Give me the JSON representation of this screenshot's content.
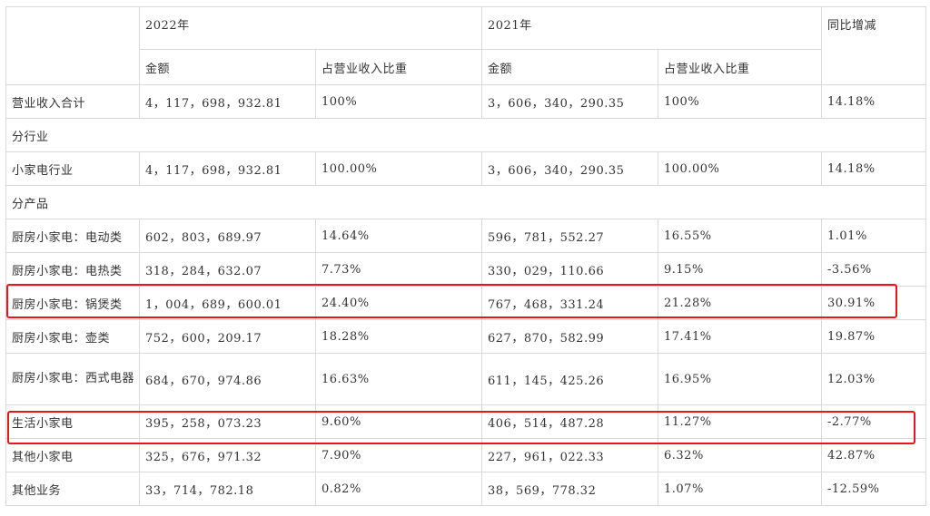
{
  "header": {
    "year_2022": "2022年",
    "year_2021": "2021年",
    "yoy": "同比增减",
    "amount_2022": "金额",
    "share_2022": "占营业收入比重",
    "amount_2021": "金额",
    "share_2021": "占营业收入比重"
  },
  "rows": [
    {
      "label": "营业收入合计",
      "a2022": "4，117，698，932.81",
      "s2022": "100%",
      "a2021": "3，606，340，290.35",
      "s2021": "100%",
      "yoy": "14.18%"
    },
    {
      "label": "分行业"
    },
    {
      "label": "小家电行业",
      "a2022": "4，117，698，932.81",
      "s2022": "100.00%",
      "a2021": "3，606，340，290.35",
      "s2021": "100.00%",
      "yoy": "14.18%"
    },
    {
      "label": "分产品"
    },
    {
      "label": "厨房小家电：电动类",
      "a2022": "602，803，689.97",
      "s2022": "14.64%",
      "a2021": "596，781，552.27",
      "s2021": "16.55%",
      "yoy": "1.01%"
    },
    {
      "label": "厨房小家电：电热类",
      "a2022": "318，284，632.07",
      "s2022": "7.73%",
      "a2021": "330，029，110.66",
      "s2021": "9.15%",
      "yoy": "-3.56%"
    },
    {
      "label": "厨房小家电：锅煲类",
      "a2022": "1，004，689，600.01",
      "s2022": "24.40%",
      "a2021": "767，468，331.24",
      "s2021": "21.28%",
      "yoy": "30.91%"
    },
    {
      "label": "厨房小家电：壶类",
      "a2022": "752，600，209.17",
      "s2022": "18.28%",
      "a2021": "627，870，582.99",
      "s2021": "17.41%",
      "yoy": "19.87%"
    },
    {
      "label": "厨房小家电：西式电器",
      "a2022": "684，670，974.86",
      "s2022": "16.63%",
      "a2021": "611，145，425.26",
      "s2021": "16.95%",
      "yoy": "12.03%"
    },
    {
      "label": "生活小家电",
      "a2022": "395，258，073.23",
      "s2022": "9.60%",
      "a2021": "406，514，487.28",
      "s2021": "11.27%",
      "yoy": "-2.77%"
    },
    {
      "label": "其他小家电",
      "a2022": "325，676，971.32",
      "s2022": "7.90%",
      "a2021": "227，961，022.33",
      "s2021": "6.32%",
      "yoy": "42.87%"
    },
    {
      "label": "其他业务",
      "a2022": "33，714，782.18",
      "s2022": "0.82%",
      "a2021": "38，569，778.32",
      "s2021": "1.07%",
      "yoy": "-12.59%"
    }
  ],
  "highlight_color": "#e8161b"
}
